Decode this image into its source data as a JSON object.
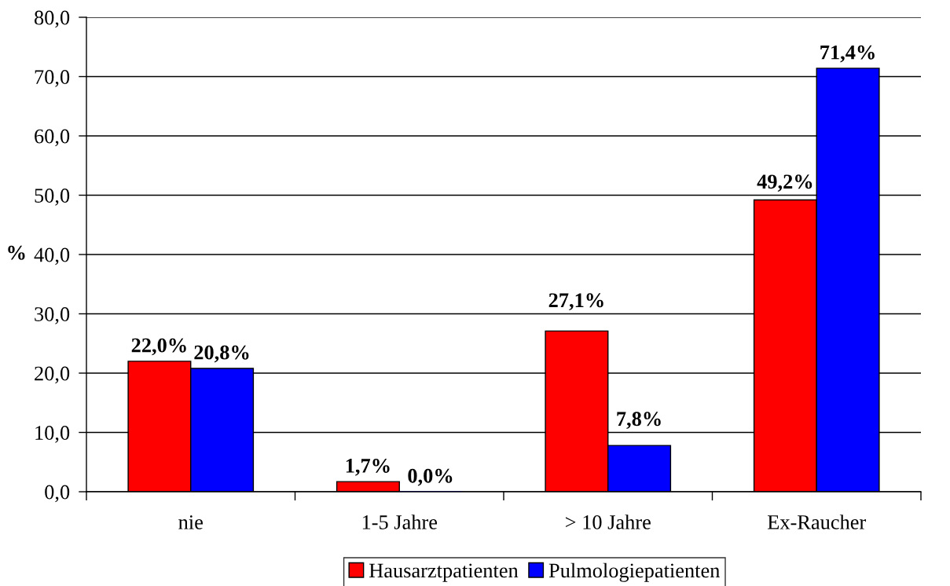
{
  "chart_data": {
    "type": "bar",
    "categories": [
      "nie",
      "1-5 Jahre",
      "> 10 Jahre",
      "Ex-Raucher"
    ],
    "ylabel": "%",
    "series": [
      {
        "name": "Hausarztpatienten",
        "color": "#ff0000",
        "values": [
          22.0,
          1.7,
          27.1,
          49.2
        ],
        "value_labels": [
          "22,0%",
          "1,7%",
          "27,1%",
          "49,2%"
        ]
      },
      {
        "name": "Pulmologiepatienten",
        "color": "#0000ff",
        "values": [
          20.8,
          0.0,
          7.8,
          71.4
        ],
        "value_labels": [
          "20,8%",
          "0,0%",
          "7,8%",
          "71,4%"
        ]
      }
    ],
    "ylim": [
      0,
      80
    ],
    "yticks": [
      {
        "value": 0,
        "label": "0,0"
      },
      {
        "value": 10,
        "label": "10,0"
      },
      {
        "value": 20,
        "label": "20,0"
      },
      {
        "value": 30,
        "label": "30,0"
      },
      {
        "value": 40,
        "label": "40,0"
      },
      {
        "value": 50,
        "label": "50,0"
      },
      {
        "value": 60,
        "label": "60,0"
      },
      {
        "value": 70,
        "label": "70,0"
      },
      {
        "value": 80,
        "label": "80,0"
      }
    ],
    "grid": "y",
    "legend": "bottom"
  }
}
